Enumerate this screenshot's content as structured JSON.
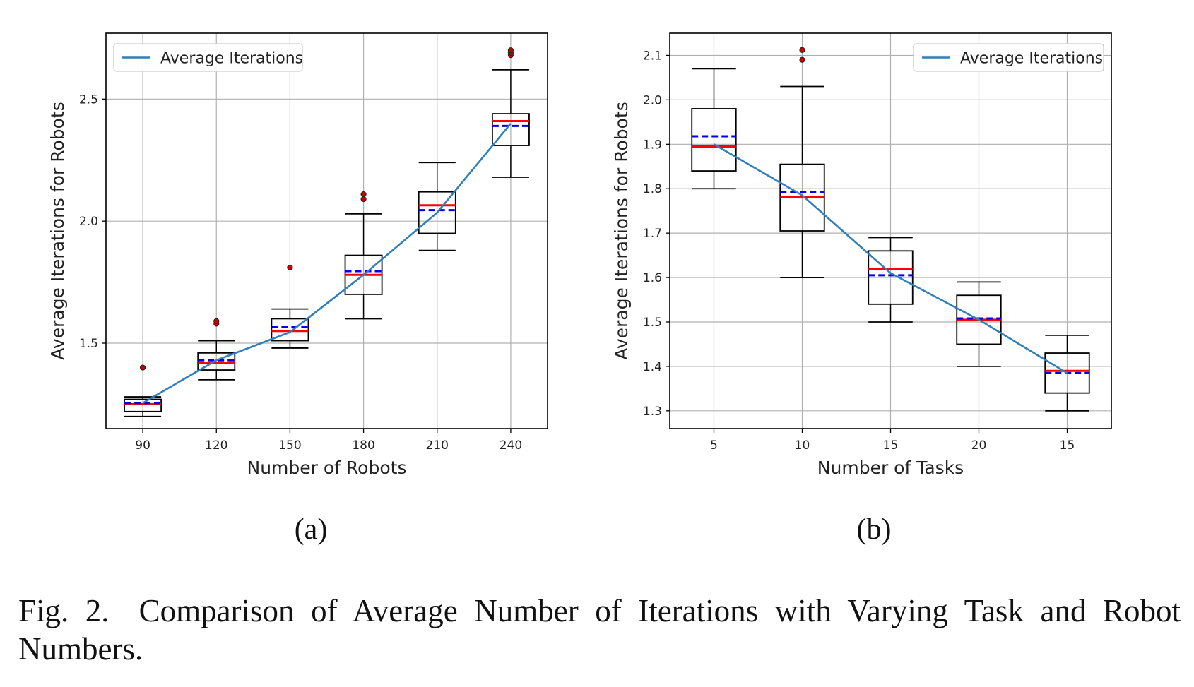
{
  "chart_data": [
    {
      "type": "box",
      "panel_label": "(a)",
      "xlabel": "Number of Robots",
      "ylabel": "Average Iterations for Robots",
      "categories": [
        "90",
        "120",
        "150",
        "180",
        "210",
        "240"
      ],
      "ylim": [
        1.15,
        2.77
      ],
      "yticks": [
        "1.5",
        "2.0",
        "2.5"
      ],
      "ytick_values": [
        1.5,
        2.0,
        2.5
      ],
      "grid": true,
      "legend": {
        "label": "Average Iterations",
        "position": "top-left"
      },
      "boxes": [
        {
          "whisker_low": 1.2,
          "q1": 1.22,
          "median": 1.25,
          "mean": 1.255,
          "q3": 1.27,
          "whisker_high": 1.28,
          "outliers": [
            1.4
          ]
        },
        {
          "whisker_low": 1.35,
          "q1": 1.39,
          "median": 1.42,
          "mean": 1.43,
          "q3": 1.46,
          "whisker_high": 1.51,
          "outliers": [
            1.58,
            1.59
          ]
        },
        {
          "whisker_low": 1.48,
          "q1": 1.51,
          "median": 1.55,
          "mean": 1.565,
          "q3": 1.6,
          "whisker_high": 1.64,
          "outliers": [
            1.81
          ]
        },
        {
          "whisker_low": 1.6,
          "q1": 1.7,
          "median": 1.78,
          "mean": 1.795,
          "q3": 1.86,
          "whisker_high": 2.03,
          "outliers": [
            2.09,
            2.11
          ]
        },
        {
          "whisker_low": 1.88,
          "q1": 1.95,
          "median": 2.065,
          "mean": 2.045,
          "q3": 2.12,
          "whisker_high": 2.24,
          "outliers": []
        },
        {
          "whisker_low": 2.18,
          "q1": 2.31,
          "median": 2.41,
          "mean": 2.39,
          "q3": 2.44,
          "whisker_high": 2.62,
          "outliers": [
            2.68,
            2.69,
            2.7
          ]
        }
      ],
      "series": [
        {
          "name": "Average Iterations",
          "values": [
            1.255,
            1.43,
            1.545,
            1.78,
            2.035,
            2.4
          ]
        }
      ],
      "colors": {
        "line": "#2e7fbb",
        "median": "#ff0000",
        "mean": "#0000ee",
        "outlier": "#8b0000"
      }
    },
    {
      "type": "box",
      "panel_label": "(b)",
      "xlabel": "Number of Tasks",
      "ylabel": "Average Iterations for Robots",
      "categories": [
        "5",
        "10",
        "15",
        "20",
        "15"
      ],
      "ylim": [
        1.26,
        2.15
      ],
      "yticks": [
        "1.3",
        "1.4",
        "1.5",
        "1.6",
        "1.7",
        "1.8",
        "1.9",
        "2.0",
        "2.1"
      ],
      "ytick_values": [
        1.3,
        1.4,
        1.5,
        1.6,
        1.7,
        1.8,
        1.9,
        2.0,
        2.1
      ],
      "grid": true,
      "legend": {
        "label": "Average Iterations",
        "position": "top-right"
      },
      "boxes": [
        {
          "whisker_low": 1.8,
          "q1": 1.84,
          "median": 1.895,
          "mean": 1.918,
          "q3": 1.98,
          "whisker_high": 2.07,
          "outliers": []
        },
        {
          "whisker_low": 1.6,
          "q1": 1.705,
          "median": 1.782,
          "mean": 1.792,
          "q3": 1.855,
          "whisker_high": 2.03,
          "outliers": [
            2.09,
            2.112
          ]
        },
        {
          "whisker_low": 1.5,
          "q1": 1.54,
          "median": 1.62,
          "mean": 1.605,
          "q3": 1.66,
          "whisker_high": 1.69,
          "outliers": []
        },
        {
          "whisker_low": 1.4,
          "q1": 1.45,
          "median": 1.505,
          "mean": 1.508,
          "q3": 1.56,
          "whisker_high": 1.59,
          "outliers": []
        },
        {
          "whisker_low": 1.3,
          "q1": 1.34,
          "median": 1.39,
          "mean": 1.385,
          "q3": 1.43,
          "whisker_high": 1.47,
          "outliers": []
        }
      ],
      "series": [
        {
          "name": "Average Iterations",
          "values": [
            1.9,
            1.785,
            1.61,
            1.505,
            1.385
          ]
        }
      ],
      "colors": {
        "line": "#2e7fbb",
        "median": "#ff0000",
        "mean": "#0000ee",
        "outlier": "#8b0000"
      }
    }
  ],
  "caption": {
    "label": "Fig. 2.",
    "text": "Comparison of Average Number of Iterations with Varying Task and Robot Numbers."
  }
}
